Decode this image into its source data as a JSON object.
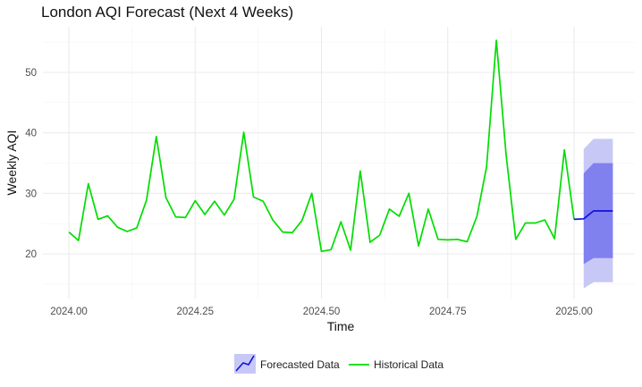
{
  "chart_data": {
    "type": "line",
    "title": "London AQI Forecast (Next 4 Weeks)",
    "xlabel": "Time",
    "ylabel": "Weekly AQI",
    "xlim": [
      2023.95,
      2025.12
    ],
    "ylim": [
      12.5,
      58
    ],
    "grid": true,
    "legend_position": "bottom",
    "x_ticks": [
      2024.0,
      2024.25,
      2024.5,
      2024.75,
      2025.0
    ],
    "x_tick_labels": [
      "2024.00",
      "2024.25",
      "2024.50",
      "2024.75",
      "2025.00"
    ],
    "y_ticks": [
      20,
      30,
      40,
      50
    ],
    "y_tick_labels": [
      "20",
      "30",
      "40",
      "50"
    ],
    "series": [
      {
        "name": "Historical Data",
        "color": "#00dd00",
        "x": [
          2024.0,
          2024.0192,
          2024.0385,
          2024.0577,
          2024.0769,
          2024.0962,
          2024.1154,
          2024.1346,
          2024.1538,
          2024.1731,
          2024.1923,
          2024.2115,
          2024.2308,
          2024.25,
          2024.2692,
          2024.2885,
          2024.3077,
          2024.3269,
          2024.3462,
          2024.3654,
          2024.3846,
          2024.4038,
          2024.4231,
          2024.4423,
          2024.4615,
          2024.4808,
          2024.5,
          2024.5192,
          2024.5385,
          2024.5577,
          2024.5769,
          2024.5962,
          2024.6154,
          2024.6346,
          2024.6538,
          2024.6731,
          2024.6923,
          2024.7115,
          2024.7308,
          2024.75,
          2024.7692,
          2024.7885,
          2024.8077,
          2024.8269,
          2024.8462,
          2024.8654,
          2024.8846,
          2024.9038,
          2024.9231,
          2024.9423,
          2024.9615,
          2024.9808,
          2025.0
        ],
        "y": [
          23.6,
          22.2,
          31.6,
          25.7,
          26.3,
          24.4,
          23.7,
          24.3,
          28.9,
          39.4,
          29.3,
          26.1,
          26.0,
          28.8,
          26.5,
          28.7,
          26.4,
          29.0,
          40.1,
          29.4,
          28.7,
          25.6,
          23.6,
          23.5,
          25.5,
          30.0,
          20.4,
          20.7,
          25.3,
          20.6,
          33.7,
          21.9,
          23.1,
          27.4,
          26.2,
          30.0,
          21.3,
          27.4,
          22.4,
          22.3,
          22.4,
          22.0,
          26.2,
          34.4,
          55.3,
          36.4,
          22.4,
          25.1,
          25.1,
          25.6,
          22.5,
          37.2,
          25.7
        ]
      },
      {
        "name": "Forecasted Data",
        "color": "#1010dd",
        "x": [
          2025.0192,
          2025.0385,
          2025.0577,
          2025.0769
        ],
        "y": [
          25.8,
          27.1,
          27.1,
          27.1
        ],
        "band_80": {
          "lower": [
            18.3,
            19.3,
            19.3,
            19.3
          ],
          "upper": [
            33.3,
            35.0,
            35.0,
            35.0
          ],
          "color": "#8080ee"
        },
        "band_95": {
          "lower": [
            14.3,
            15.3,
            15.3,
            15.3
          ],
          "upper": [
            37.3,
            39.0,
            39.0,
            39.0
          ],
          "color": "#c8c8f6"
        }
      }
    ],
    "legend": [
      {
        "label": "Forecasted Data",
        "key": "forecast"
      },
      {
        "label": "Historical Data",
        "key": "historical"
      }
    ]
  }
}
